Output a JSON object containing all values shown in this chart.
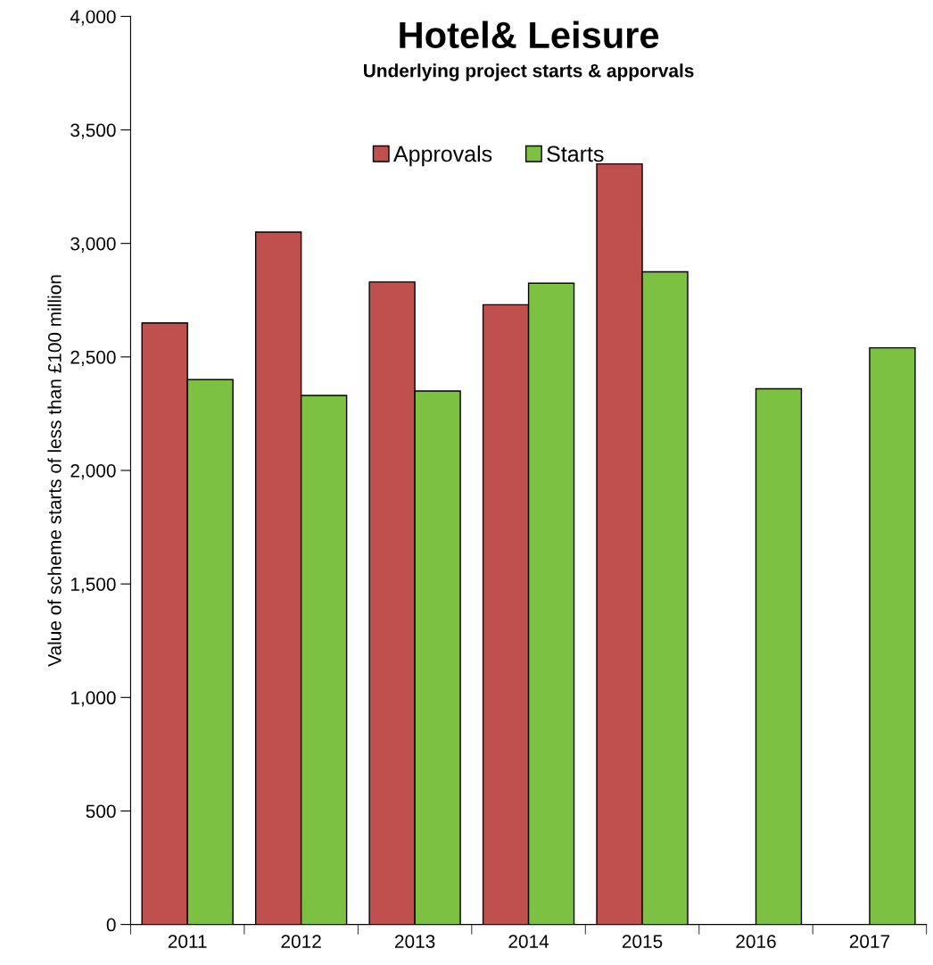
{
  "chart_data": {
    "type": "bar",
    "title": "Hotel& Leisure",
    "subtitle": "Underlying project starts & apporvals",
    "ylabel": "Value of scheme starts of less than £100 million",
    "categories": [
      "2011",
      "2012",
      "2013",
      "2014",
      "2015",
      "2016",
      "2017"
    ],
    "series": [
      {
        "name": "Approvals",
        "color": "#c0504d",
        "values": [
          2650,
          3050,
          2830,
          2730,
          3350,
          null,
          null
        ]
      },
      {
        "name": "Starts",
        "color": "#7dc142",
        "values": [
          2400,
          2330,
          2350,
          2825,
          2875,
          2360,
          2540
        ]
      }
    ],
    "ylim": [
      0,
      4000
    ],
    "yticks": [
      {
        "value": 0,
        "label": "0"
      },
      {
        "value": 500,
        "label": "500"
      },
      {
        "value": 1000,
        "label": "1,000"
      },
      {
        "value": 1500,
        "label": "1,500"
      },
      {
        "value": 2000,
        "label": "2,000"
      },
      {
        "value": 2500,
        "label": "2,500"
      },
      {
        "value": 3000,
        "label": "3,000"
      },
      {
        "value": 3500,
        "label": "3,500"
      },
      {
        "value": 4000,
        "label": "4,000"
      }
    ],
    "grid": false,
    "legend": "top"
  }
}
